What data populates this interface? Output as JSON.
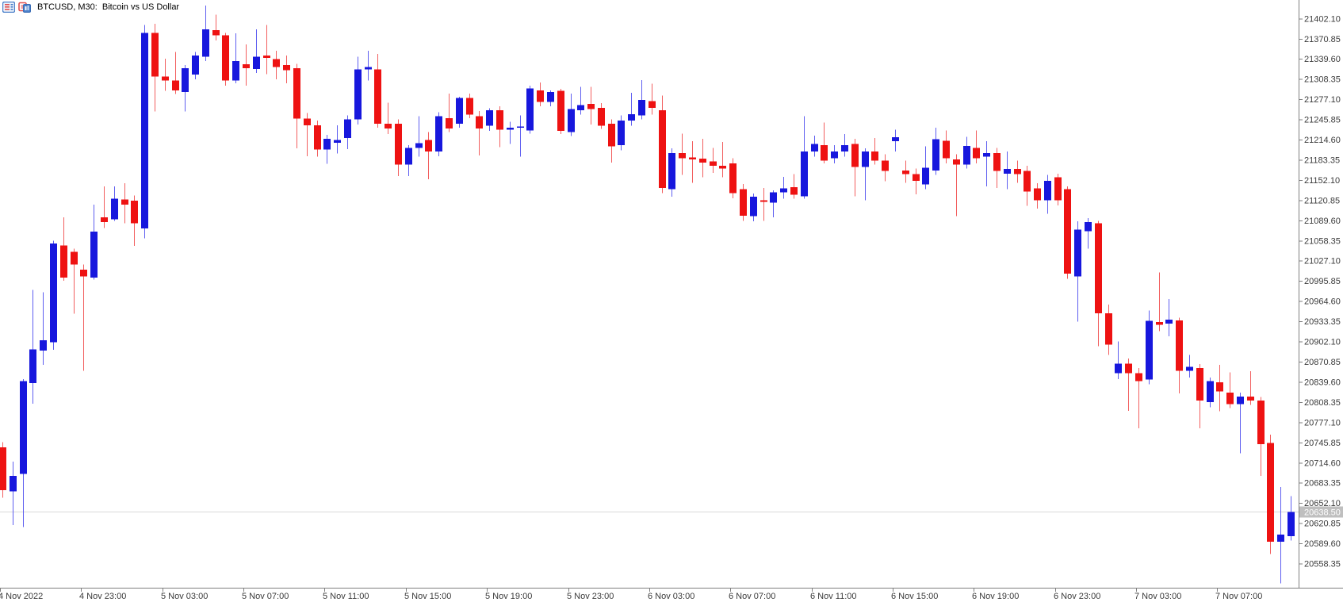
{
  "header": {
    "icons": [
      {
        "name": "depth-of-market-icon"
      },
      {
        "name": "chart-symbol-icon"
      }
    ],
    "title": "BTCUSD, M30:  Bitcoin vs US Dollar"
  },
  "chart_data": {
    "type": "candlestick",
    "symbol": "BTCUSD",
    "timeframe": "M30",
    "title": "BTCUSD, M30:  Bitcoin vs US Dollar",
    "start_time": "4 Nov 2022 19:00",
    "interval_minutes": 30,
    "grid": "none",
    "legend_position": "none",
    "ylim": [
      20521,
      21431
    ],
    "price_axis": {
      "step": 31.25,
      "labels": [
        "21402.10",
        "21370.85",
        "21339.60",
        "21308.35",
        "21277.10",
        "21245.85",
        "21214.60",
        "21183.35",
        "21152.10",
        "21120.85",
        "21089.60",
        "21058.35",
        "21027.10",
        "20995.85",
        "20964.60",
        "20933.35",
        "20902.10",
        "20870.85",
        "20839.60",
        "20808.35",
        "20777.10",
        "20745.85",
        "20714.60",
        "20683.35",
        "20652.10",
        "20620.85",
        "20589.60",
        "20558.35"
      ]
    },
    "time_axis": {
      "labels": [
        "4 Nov 2022",
        "4 Nov 23:00",
        "5 Nov 03:00",
        "5 Nov 07:00",
        "5 Nov 11:00",
        "5 Nov 15:00",
        "5 Nov 19:00",
        "5 Nov 23:00",
        "6 Nov 03:00",
        "6 Nov 07:00",
        "6 Nov 11:00",
        "6 Nov 15:00",
        "6 Nov 19:00",
        "6 Nov 23:00",
        "7 Nov 03:00",
        "7 Nov 07:00"
      ]
    },
    "current_price": "20638.50",
    "colors": {
      "up": "#1717dd",
      "down": "#ee1212",
      "up_wick": "#5e5ef0",
      "down_wick": "#f25e5e",
      "bid_line": "#d9d9d9",
      "badge_bg": "#bfbfbf",
      "badge_text": "#ffffff",
      "axis_line": "#7f7f7f",
      "axis_text": "#3a3a3a",
      "background": "#ffffff"
    },
    "candles_ohlc": [
      [
        20738,
        20746,
        20660,
        20672
      ],
      [
        20670,
        20716,
        20618,
        20694
      ],
      [
        20697,
        20844,
        20615,
        20841
      ],
      [
        20838,
        20982,
        20806,
        20890
      ],
      [
        20888,
        20978,
        20866,
        20904
      ],
      [
        20901,
        21058,
        20889,
        21054
      ],
      [
        21051,
        21094,
        20996,
        21001
      ],
      [
        21041,
        21046,
        20945,
        21021
      ],
      [
        21013,
        21021,
        20857,
        21003
      ],
      [
        21001,
        21114,
        20998,
        21072
      ],
      [
        21094,
        21142,
        21078,
        21087
      ],
      [
        21091,
        21142,
        21089,
        21123
      ],
      [
        21122,
        21147,
        21085,
        21114
      ],
      [
        21120,
        21128,
        21050,
        21085
      ],
      [
        21077,
        21392,
        21062,
        21380
      ],
      [
        21380,
        21394,
        21258,
        21312
      ],
      [
        21312,
        21340,
        21290,
        21306
      ],
      [
        21306,
        21350,
        21285,
        21291
      ],
      [
        21288,
        21330,
        21258,
        21325
      ],
      [
        21315,
        21350,
        21308,
        21345
      ],
      [
        21343,
        21422,
        21336,
        21385
      ],
      [
        21384,
        21408,
        21368,
        21376
      ],
      [
        21376,
        21380,
        21298,
        21306
      ],
      [
        21306,
        21379,
        21302,
        21336
      ],
      [
        21331,
        21362,
        21298,
        21325
      ],
      [
        21324,
        21385,
        21318,
        21343
      ],
      [
        21345,
        21392,
        21316,
        21341
      ],
      [
        21339,
        21352,
        21308,
        21327
      ],
      [
        21330,
        21345,
        21302,
        21322
      ],
      [
        21325,
        21332,
        21201,
        21247
      ],
      [
        21247,
        21256,
        21189,
        21237
      ],
      [
        21237,
        21244,
        21188,
        21199
      ],
      [
        21199,
        21222,
        21177,
        21216
      ],
      [
        21210,
        21237,
        21193,
        21214
      ],
      [
        21217,
        21252,
        21200,
        21246
      ],
      [
        21246,
        21343,
        21238,
        21323
      ],
      [
        21323,
        21352,
        21306,
        21327
      ],
      [
        21323,
        21347,
        21233,
        21239
      ],
      [
        21239,
        21272,
        21223,
        21232
      ],
      [
        21239,
        21246,
        21158,
        21176
      ],
      [
        21176,
        21206,
        21158,
        21202
      ],
      [
        21202,
        21251,
        21188,
        21209
      ],
      [
        21214,
        21226,
        21153,
        21196
      ],
      [
        21196,
        21257,
        21189,
        21251
      ],
      [
        21248,
        21286,
        21226,
        21232
      ],
      [
        21239,
        21281,
        21233,
        21279
      ],
      [
        21279,
        21286,
        21248,
        21253
      ],
      [
        21251,
        21259,
        21190,
        21232
      ],
      [
        21236,
        21263,
        21228,
        21260
      ],
      [
        21260,
        21266,
        21203,
        21230
      ],
      [
        21230,
        21242,
        21208,
        21233
      ],
      [
        21233,
        21252,
        21188,
        21235
      ],
      [
        21229,
        21298,
        21224,
        21294
      ],
      [
        21291,
        21303,
        21266,
        21273
      ],
      [
        21273,
        21291,
        21266,
        21288
      ],
      [
        21290,
        21293,
        21223,
        21228
      ],
      [
        21226,
        21286,
        21220,
        21262
      ],
      [
        21260,
        21296,
        21253,
        21268
      ],
      [
        21270,
        21296,
        21238,
        21262
      ],
      [
        21264,
        21271,
        21231,
        21236
      ],
      [
        21239,
        21246,
        21179,
        21204
      ],
      [
        21206,
        21252,
        21198,
        21244
      ],
      [
        21244,
        21287,
        21236,
        21254
      ],
      [
        21252,
        21307,
        21246,
        21276
      ],
      [
        21274,
        21301,
        21253,
        21264
      ],
      [
        21260,
        21283,
        21132,
        21140
      ],
      [
        21138,
        21201,
        21126,
        21194
      ],
      [
        21194,
        21224,
        21160,
        21186
      ],
      [
        21187,
        21212,
        21148,
        21184
      ],
      [
        21185,
        21216,
        21156,
        21179
      ],
      [
        21181,
        21202,
        21163,
        21174
      ],
      [
        21174,
        21211,
        21156,
        21170
      ],
      [
        21178,
        21186,
        21124,
        21132
      ],
      [
        21138,
        21146,
        21089,
        21097
      ],
      [
        21096,
        21131,
        21088,
        21126
      ],
      [
        21121,
        21140,
        21089,
        21118
      ],
      [
        21117,
        21136,
        21094,
        21133
      ],
      [
        21133,
        21157,
        21123,
        21139
      ],
      [
        21141,
        21161,
        21123,
        21129
      ],
      [
        21127,
        21251,
        21123,
        21196
      ],
      [
        21196,
        21221,
        21188,
        21208
      ],
      [
        21206,
        21241,
        21178,
        21182
      ],
      [
        21186,
        21206,
        21178,
        21196
      ],
      [
        21196,
        21223,
        21188,
        21206
      ],
      [
        21208,
        21216,
        21127,
        21172
      ],
      [
        21172,
        21201,
        21121,
        21196
      ],
      [
        21196,
        21217,
        21176,
        21182
      ],
      [
        21182,
        21192,
        21150,
        21166
      ],
      [
        21212,
        21230,
        21196,
        21218
      ],
      [
        21167,
        21182,
        21148,
        21161
      ],
      [
        21161,
        21170,
        21130,
        21151
      ],
      [
        21145,
        21204,
        21138,
        21171
      ],
      [
        21167,
        21233,
        21160,
        21215
      ],
      [
        21213,
        21229,
        21178,
        21186
      ],
      [
        21184,
        21192,
        21096,
        21176
      ],
      [
        21176,
        21219,
        21170,
        21205
      ],
      [
        21202,
        21229,
        21178,
        21186
      ],
      [
        21188,
        21212,
        21142,
        21194
      ],
      [
        21194,
        21202,
        21140,
        21166
      ],
      [
        21162,
        21196,
        21138,
        21169
      ],
      [
        21169,
        21182,
        21148,
        21161
      ],
      [
        21166,
        21174,
        21112,
        21134
      ],
      [
        21139,
        21147,
        21108,
        21121
      ],
      [
        21121,
        21160,
        21100,
        21151
      ],
      [
        21156,
        21162,
        21113,
        21121
      ],
      [
        21138,
        21142,
        20999,
        21007
      ],
      [
        21003,
        21088,
        20933,
        21075
      ],
      [
        21073,
        21093,
        21046,
        21087
      ],
      [
        21085,
        21089,
        20895,
        20946
      ],
      [
        20946,
        20959,
        20881,
        20897
      ],
      [
        20853,
        20902,
        20844,
        20868
      ],
      [
        20868,
        20876,
        20795,
        20853
      ],
      [
        20853,
        20861,
        20768,
        20841
      ],
      [
        20843,
        20950,
        20836,
        20934
      ],
      [
        20932,
        21009,
        20918,
        20928
      ],
      [
        20930,
        20968,
        20910,
        20936
      ],
      [
        20935,
        20939,
        20822,
        20857
      ],
      [
        20857,
        20881,
        20846,
        20863
      ],
      [
        20861,
        20867,
        20768,
        20811
      ],
      [
        20808,
        20846,
        20800,
        20841
      ],
      [
        20839,
        20866,
        20794,
        20825
      ],
      [
        20823,
        20854,
        20799,
        20805
      ],
      [
        20805,
        20823,
        20729,
        20817
      ],
      [
        20817,
        20856,
        20804,
        20811
      ],
      [
        20811,
        20816,
        20694,
        20743
      ],
      [
        20745,
        20758,
        20573,
        20592
      ],
      [
        20592,
        20677,
        20528,
        20603
      ],
      [
        20601,
        20663,
        20594,
        20638.5
      ]
    ]
  }
}
